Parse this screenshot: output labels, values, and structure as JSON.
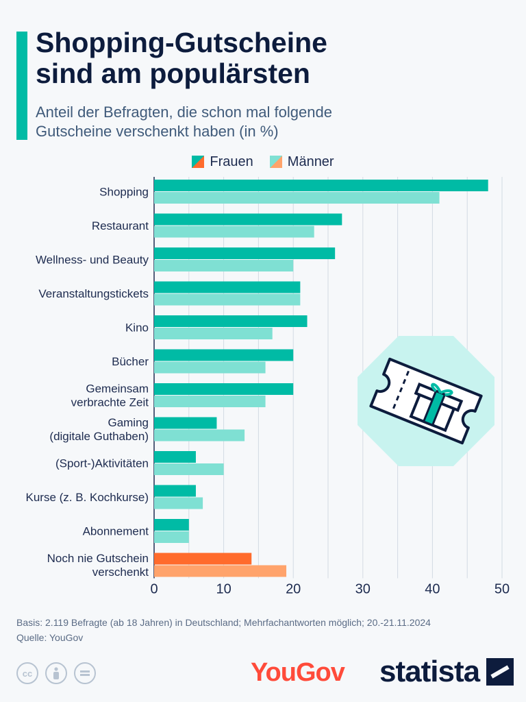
{
  "header": {
    "title_line1": "Shopping-Gutscheine",
    "title_line2": "sind am populärsten",
    "subtitle_line1": "Anteil der Befragten, die schon mal folgende",
    "subtitle_line2": "Gutscheine verschenkt haben (in %)"
  },
  "legend": {
    "frauen": "Frauen",
    "maenner": "Männer"
  },
  "colors": {
    "frauen": "#00bba5",
    "maenner": "#7fe0d3",
    "frauen_highlight": "#ff6b2c",
    "maenner_highlight": "#ffa36b",
    "accent": "#00bba5"
  },
  "chart_data": {
    "type": "bar",
    "orientation": "horizontal",
    "title": "Shopping-Gutscheine sind am populärsten",
    "subtitle": "Anteil der Befragten, die schon mal folgende Gutscheine verschenkt haben (in %)",
    "categories": [
      [
        "Shopping"
      ],
      [
        "Restaurant"
      ],
      [
        "Wellness- und Beauty"
      ],
      [
        "Veranstaltungstickets"
      ],
      [
        "Kino"
      ],
      [
        "Bücher"
      ],
      [
        "Gemeinsam",
        "verbrachte Zeit"
      ],
      [
        "Gaming",
        "(digitale Guthaben)"
      ],
      [
        "(Sport-)Aktivitäten"
      ],
      [
        "Kurse (z. B. Kochkurse)"
      ],
      [
        "Abonnement"
      ],
      [
        "Noch nie Gutschein",
        "verschenkt"
      ]
    ],
    "series": [
      {
        "name": "Frauen",
        "values": [
          48,
          27,
          26,
          21,
          22,
          20,
          20,
          9,
          6,
          6,
          5,
          14
        ]
      },
      {
        "name": "Männer",
        "values": [
          41,
          23,
          20,
          21,
          17,
          16,
          16,
          13,
          10,
          7,
          5,
          19
        ]
      }
    ],
    "highlight_index": 11,
    "xlim": [
      0,
      50
    ],
    "xticks": [
      0,
      10,
      20,
      30,
      40,
      50
    ],
    "grid": "vertical",
    "legend_position": "top"
  },
  "footer": {
    "basis": "Basis: 2.119 Befragte (ab 18 Jahren) in Deutschland; Mehrfachantworten möglich; 20.-21.11.2024",
    "source": "Quelle: YouGov",
    "yougov": "YouGov",
    "statista": "statista",
    "cc": "cc"
  }
}
